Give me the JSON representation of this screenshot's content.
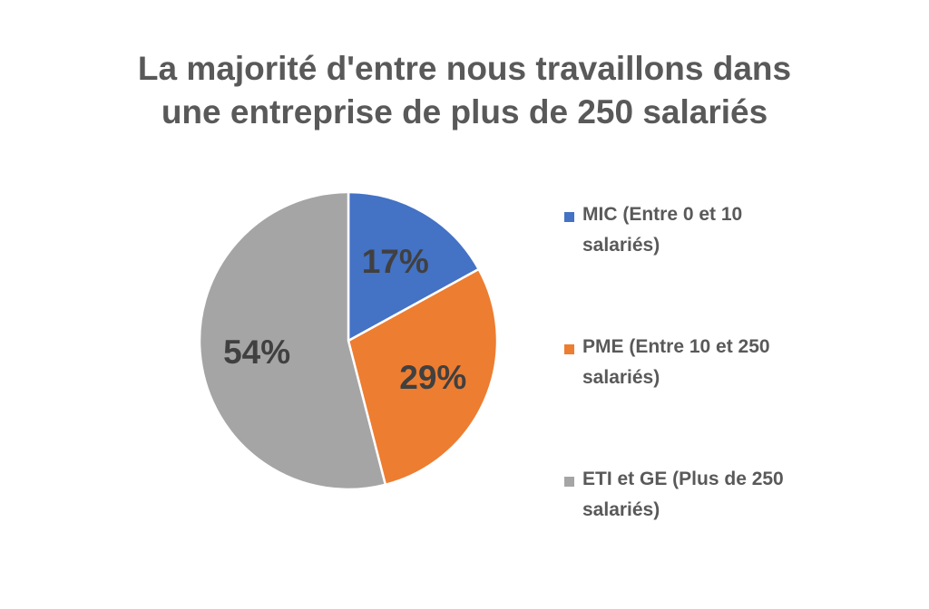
{
  "chart_data": {
    "type": "pie",
    "title": "La majorité d'entre nous travaillons dans\nune entreprise de plus de 250 salariés",
    "slices": [
      {
        "label": "MIC (Entre 0 et 10 salariés)",
        "value": 17,
        "display": "17%",
        "color": "#4472C4"
      },
      {
        "label": "PME (Entre 10 et 250 salariés)",
        "value": 29,
        "display": "29%",
        "color": "#ED7D31"
      },
      {
        "label": "ETI et GE (Plus de 250 salariés)",
        "value": 54,
        "display": "54%",
        "color": "#A5A5A5"
      }
    ],
    "start_angle": "12 o'clock",
    "direction": "clockwise",
    "legend": "right"
  }
}
